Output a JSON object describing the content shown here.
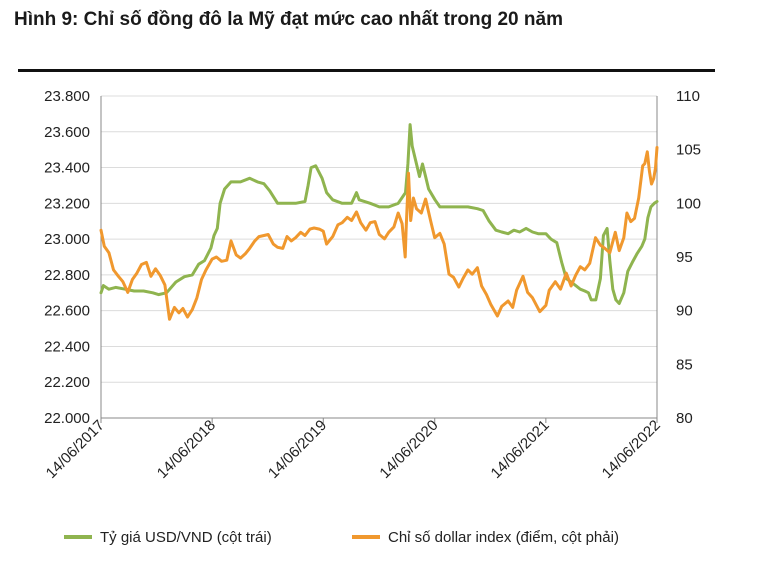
{
  "title": "Hình 9: Chỉ số đồng đô la Mỹ đạt mức cao nhất trong 20 năm",
  "colors": {
    "usd_vnd": "#8fb44f",
    "dollar_index": "#f0982e",
    "gridline": "#dcdcdc",
    "axis": "#888888"
  },
  "chart_data": {
    "type": "line",
    "title": "Hình 9: Chỉ số đồng đô la Mỹ đạt mức cao nhất trong 20 năm",
    "x_range": [
      "14/06/2017",
      "14/06/2022"
    ],
    "x_ticks": [
      "14/06/2017",
      "14/06/2018",
      "14/06/2019",
      "14/06/2020",
      "14/06/2021",
      "14/06/2022"
    ],
    "y_left": {
      "min": 22000,
      "max": 23800,
      "ticks": [
        "22.000",
        "22.200",
        "22.400",
        "22.600",
        "22.800",
        "23.000",
        "23.200",
        "23.400",
        "23.600",
        "23.800"
      ]
    },
    "y_right": {
      "min": 80,
      "max": 110,
      "ticks": [
        "80",
        "85",
        "90",
        "95",
        "100",
        "105",
        "110"
      ]
    },
    "grid": "horizontal",
    "legend_position": "bottom",
    "series": [
      {
        "name": "Tỷ giá USD/VND (cột trái)",
        "axis": "left",
        "color": "#8fb44f",
        "points": [
          [
            "2017-06-14",
            22700
          ],
          [
            "2017-06-22",
            22740
          ],
          [
            "2017-07-10",
            22720
          ],
          [
            "2017-08-01",
            22730
          ],
          [
            "2017-09-01",
            22720
          ],
          [
            "2017-10-01",
            22710
          ],
          [
            "2017-11-01",
            22710
          ],
          [
            "2017-12-01",
            22700
          ],
          [
            "2017-12-20",
            22690
          ],
          [
            "2018-01-15",
            22700
          ],
          [
            "2018-02-15",
            22760
          ],
          [
            "2018-03-15",
            22790
          ],
          [
            "2018-04-10",
            22800
          ],
          [
            "2018-05-01",
            22860
          ],
          [
            "2018-05-20",
            22880
          ],
          [
            "2018-06-10",
            22950
          ],
          [
            "2018-06-20",
            23020
          ],
          [
            "2018-07-01",
            23060
          ],
          [
            "2018-07-10",
            23200
          ],
          [
            "2018-07-25",
            23280
          ],
          [
            "2018-08-15",
            23320
          ],
          [
            "2018-09-15",
            23320
          ],
          [
            "2018-10-15",
            23340
          ],
          [
            "2018-11-10",
            23320
          ],
          [
            "2018-12-01",
            23310
          ],
          [
            "2018-12-20",
            23270
          ],
          [
            "2019-01-15",
            23200
          ],
          [
            "2019-02-15",
            23200
          ],
          [
            "2019-03-15",
            23200
          ],
          [
            "2019-04-15",
            23210
          ],
          [
            "2019-04-25",
            23300
          ],
          [
            "2019-05-05",
            23400
          ],
          [
            "2019-05-20",
            23410
          ],
          [
            "2019-06-10",
            23340
          ],
          [
            "2019-06-25",
            23260
          ],
          [
            "2019-07-15",
            23220
          ],
          [
            "2019-08-15",
            23200
          ],
          [
            "2019-09-15",
            23200
          ],
          [
            "2019-10-01",
            23260
          ],
          [
            "2019-10-10",
            23220
          ],
          [
            "2019-11-15",
            23200
          ],
          [
            "2019-12-15",
            23180
          ],
          [
            "2020-01-15",
            23180
          ],
          [
            "2020-02-15",
            23200
          ],
          [
            "2020-03-10",
            23260
          ],
          [
            "2020-03-18",
            23420
          ],
          [
            "2020-03-25",
            23640
          ],
          [
            "2020-04-01",
            23520
          ],
          [
            "2020-04-15",
            23420
          ],
          [
            "2020-04-25",
            23350
          ],
          [
            "2020-05-05",
            23420
          ],
          [
            "2020-05-15",
            23350
          ],
          [
            "2020-05-25",
            23280
          ],
          [
            "2020-06-15",
            23220
          ],
          [
            "2020-07-01",
            23180
          ],
          [
            "2020-08-01",
            23180
          ],
          [
            "2020-09-01",
            23180
          ],
          [
            "2020-10-01",
            23180
          ],
          [
            "2020-11-01",
            23170
          ],
          [
            "2020-11-20",
            23160
          ],
          [
            "2020-12-10",
            23100
          ],
          [
            "2021-01-01",
            23050
          ],
          [
            "2021-01-20",
            23040
          ],
          [
            "2021-02-10",
            23030
          ],
          [
            "2021-03-01",
            23050
          ],
          [
            "2021-03-20",
            23040
          ],
          [
            "2021-04-10",
            23060
          ],
          [
            "2021-05-01",
            23040
          ],
          [
            "2021-05-20",
            23030
          ],
          [
            "2021-06-14",
            23030
          ],
          [
            "2021-07-01",
            23000
          ],
          [
            "2021-07-20",
            22980
          ],
          [
            "2021-08-05",
            22870
          ],
          [
            "2021-08-20",
            22780
          ],
          [
            "2021-09-05",
            22760
          ],
          [
            "2021-09-20",
            22740
          ],
          [
            "2021-10-05",
            22720
          ],
          [
            "2021-10-20",
            22710
          ],
          [
            "2021-11-01",
            22700
          ],
          [
            "2021-11-10",
            22660
          ],
          [
            "2021-11-25",
            22660
          ],
          [
            "2021-12-10",
            22780
          ],
          [
            "2021-12-20",
            23020
          ],
          [
            "2022-01-01",
            23060
          ],
          [
            "2022-01-10",
            22880
          ],
          [
            "2022-01-20",
            22720
          ],
          [
            "2022-01-30",
            22660
          ],
          [
            "2022-02-10",
            22640
          ],
          [
            "2022-02-25",
            22700
          ],
          [
            "2022-03-10",
            22820
          ],
          [
            "2022-03-25",
            22870
          ],
          [
            "2022-04-10",
            22920
          ],
          [
            "2022-04-25",
            22960
          ],
          [
            "2022-05-05",
            23000
          ],
          [
            "2022-05-15",
            23120
          ],
          [
            "2022-05-25",
            23180
          ],
          [
            "2022-06-05",
            23200
          ],
          [
            "2022-06-14",
            23210
          ]
        ]
      },
      {
        "name": "Chỉ số dollar index (điểm, cột phải)",
        "axis": "right",
        "color": "#f0982e",
        "points": [
          [
            "2017-06-14",
            97.5
          ],
          [
            "2017-06-25",
            96.0
          ],
          [
            "2017-07-10",
            95.4
          ],
          [
            "2017-07-25",
            93.8
          ],
          [
            "2017-08-10",
            93.2
          ],
          [
            "2017-08-25",
            92.7
          ],
          [
            "2017-09-10",
            91.7
          ],
          [
            "2017-09-25",
            92.9
          ],
          [
            "2017-10-10",
            93.5
          ],
          [
            "2017-10-25",
            94.3
          ],
          [
            "2017-11-10",
            94.5
          ],
          [
            "2017-11-25",
            93.2
          ],
          [
            "2017-12-10",
            93.9
          ],
          [
            "2017-12-25",
            93.3
          ],
          [
            "2018-01-10",
            92.4
          ],
          [
            "2018-01-25",
            89.2
          ],
          [
            "2018-02-10",
            90.3
          ],
          [
            "2018-02-25",
            89.8
          ],
          [
            "2018-03-10",
            90.2
          ],
          [
            "2018-03-25",
            89.4
          ],
          [
            "2018-04-10",
            90.1
          ],
          [
            "2018-04-25",
            91.2
          ],
          [
            "2018-05-10",
            92.9
          ],
          [
            "2018-05-25",
            93.8
          ],
          [
            "2018-06-14",
            94.8
          ],
          [
            "2018-06-28",
            95.0
          ],
          [
            "2018-07-15",
            94.6
          ],
          [
            "2018-08-01",
            94.7
          ],
          [
            "2018-08-15",
            96.5
          ],
          [
            "2018-09-01",
            95.2
          ],
          [
            "2018-09-15",
            94.9
          ],
          [
            "2018-10-01",
            95.3
          ],
          [
            "2018-10-15",
            95.8
          ],
          [
            "2018-11-01",
            96.5
          ],
          [
            "2018-11-15",
            96.9
          ],
          [
            "2018-12-01",
            97.0
          ],
          [
            "2018-12-15",
            97.1
          ],
          [
            "2019-01-01",
            96.2
          ],
          [
            "2019-01-15",
            95.9
          ],
          [
            "2019-02-01",
            95.8
          ],
          [
            "2019-02-15",
            96.9
          ],
          [
            "2019-03-01",
            96.5
          ],
          [
            "2019-03-15",
            96.8
          ],
          [
            "2019-04-01",
            97.3
          ],
          [
            "2019-04-15",
            97.0
          ],
          [
            "2019-05-01",
            97.6
          ],
          [
            "2019-05-15",
            97.7
          ],
          [
            "2019-06-01",
            97.6
          ],
          [
            "2019-06-14",
            97.4
          ],
          [
            "2019-06-25",
            96.2
          ],
          [
            "2019-07-15",
            96.9
          ],
          [
            "2019-08-01",
            98.0
          ],
          [
            "2019-08-15",
            98.2
          ],
          [
            "2019-09-01",
            98.7
          ],
          [
            "2019-09-15",
            98.4
          ],
          [
            "2019-10-01",
            99.2
          ],
          [
            "2019-10-15",
            98.2
          ],
          [
            "2019-11-01",
            97.5
          ],
          [
            "2019-11-15",
            98.2
          ],
          [
            "2019-12-01",
            98.3
          ],
          [
            "2019-12-15",
            97.1
          ],
          [
            "2020-01-01",
            96.7
          ],
          [
            "2020-01-15",
            97.3
          ],
          [
            "2020-02-01",
            97.8
          ],
          [
            "2020-02-15",
            99.1
          ],
          [
            "2020-02-28",
            98.1
          ],
          [
            "2020-03-09",
            95.0
          ],
          [
            "2020-03-12",
            97.5
          ],
          [
            "2020-03-20",
            102.8
          ],
          [
            "2020-03-27",
            98.4
          ],
          [
            "2020-04-05",
            100.5
          ],
          [
            "2020-04-15",
            99.5
          ],
          [
            "2020-05-01",
            99.1
          ],
          [
            "2020-05-15",
            100.4
          ],
          [
            "2020-06-01",
            98.3
          ],
          [
            "2020-06-14",
            96.8
          ],
          [
            "2020-07-01",
            97.2
          ],
          [
            "2020-07-15",
            96.2
          ],
          [
            "2020-07-31",
            93.4
          ],
          [
            "2020-08-15",
            93.1
          ],
          [
            "2020-09-01",
            92.2
          ],
          [
            "2020-09-15",
            93.0
          ],
          [
            "2020-10-01",
            93.8
          ],
          [
            "2020-10-15",
            93.4
          ],
          [
            "2020-11-01",
            94.0
          ],
          [
            "2020-11-15",
            92.3
          ],
          [
            "2020-12-01",
            91.5
          ],
          [
            "2020-12-15",
            90.6
          ],
          [
            "2021-01-06",
            89.5
          ],
          [
            "2021-01-20",
            90.4
          ],
          [
            "2021-02-10",
            90.9
          ],
          [
            "2021-02-25",
            90.3
          ],
          [
            "2021-03-10",
            91.9
          ],
          [
            "2021-03-31",
            93.2
          ],
          [
            "2021-04-15",
            91.7
          ],
          [
            "2021-05-01",
            91.2
          ],
          [
            "2021-05-25",
            89.9
          ],
          [
            "2021-06-14",
            90.5
          ],
          [
            "2021-06-25",
            91.9
          ],
          [
            "2021-07-15",
            92.7
          ],
          [
            "2021-08-01",
            92.0
          ],
          [
            "2021-08-20",
            93.5
          ],
          [
            "2021-09-05",
            92.3
          ],
          [
            "2021-09-20",
            93.3
          ],
          [
            "2021-10-05",
            94.1
          ],
          [
            "2021-10-20",
            93.8
          ],
          [
            "2021-11-05",
            94.4
          ],
          [
            "2021-11-24",
            96.8
          ],
          [
            "2021-12-10",
            96.1
          ],
          [
            "2021-12-25",
            95.8
          ],
          [
            "2022-01-10",
            95.4
          ],
          [
            "2022-01-28",
            97.3
          ],
          [
            "2022-02-10",
            95.6
          ],
          [
            "2022-02-25",
            96.8
          ],
          [
            "2022-03-07",
            99.1
          ],
          [
            "2022-03-20",
            98.3
          ],
          [
            "2022-04-01",
            98.6
          ],
          [
            "2022-04-15",
            100.5
          ],
          [
            "2022-04-28",
            103.5
          ],
          [
            "2022-05-05",
            103.7
          ],
          [
            "2022-05-13",
            104.8
          ],
          [
            "2022-05-20",
            103.0
          ],
          [
            "2022-05-27",
            101.8
          ],
          [
            "2022-06-03",
            102.3
          ],
          [
            "2022-06-09",
            103.3
          ],
          [
            "2022-06-14",
            105.2
          ]
        ]
      }
    ]
  }
}
